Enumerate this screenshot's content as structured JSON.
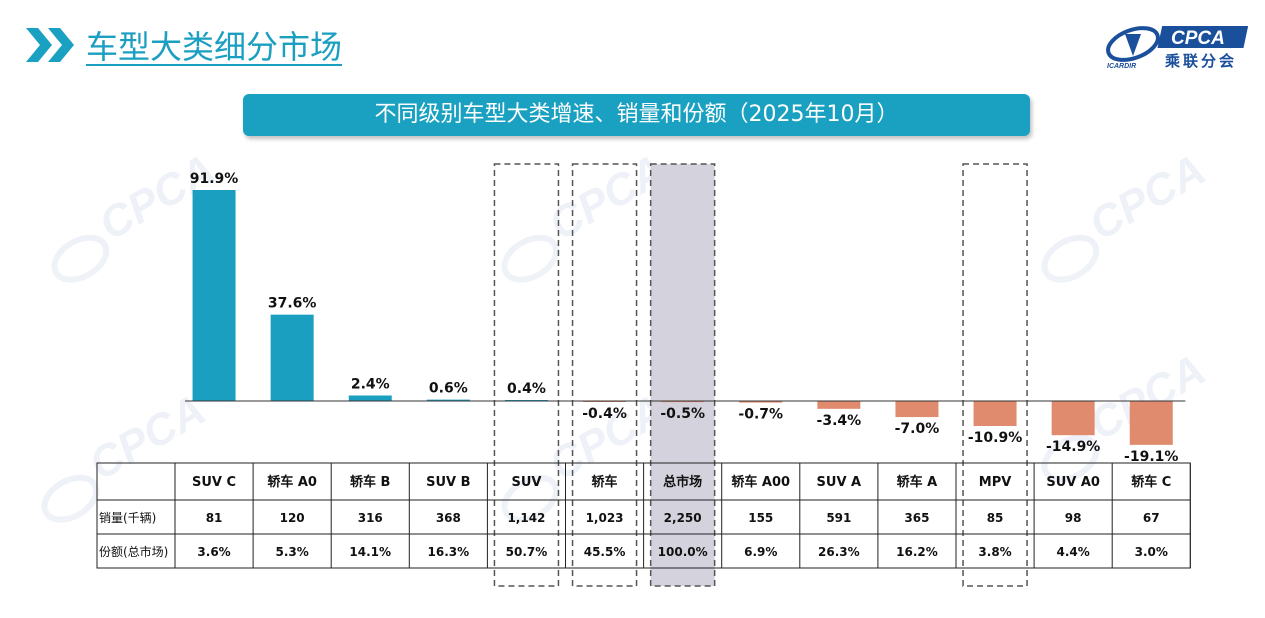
{
  "header": {
    "title": "车型大类细分市场",
    "logo_en": "CPCA",
    "logo_cn": "乘联分会",
    "logo_sub": "ICARDIR"
  },
  "banner": {
    "text": "不同级别车型大类增速、销量和份额（2025年10月）"
  },
  "colors": {
    "accent": "#1aa1c2",
    "positive_bar": "#1a9fc1",
    "negative_bar": "#e08a6e",
    "highlight_fill": "#d4d3dd",
    "title_text": "#1a9fc1",
    "logo": "#1a4f9c"
  },
  "chart_data": {
    "type": "bar",
    "title": "不同级别车型大类增速、销量和份额（2025年10月）",
    "categories": [
      "SUV C",
      "轿车 A0",
      "轿车 B",
      "SUV B",
      "SUV",
      "轿车",
      "总市场",
      "轿车 A00",
      "SUV A",
      "轿车 A",
      "MPV",
      "SUV A0",
      "轿车 C"
    ],
    "values": [
      91.9,
      37.6,
      2.4,
      0.6,
      0.4,
      -0.4,
      -0.5,
      -0.7,
      -3.4,
      -7.0,
      -10.9,
      -14.9,
      -19.1
    ],
    "labels": [
      "91.9%",
      "37.6%",
      "2.4%",
      "0.6%",
      "0.4%",
      "-0.4%",
      "-0.5%",
      "-0.7%",
      "-3.4%",
      "-7.0%",
      "-10.9%",
      "-14.9%",
      "-19.1%"
    ],
    "unit": "%",
    "ylim": [
      -19.1,
      91.9
    ],
    "grid": false,
    "dashed_highlight": [
      "SUV",
      "轿车",
      "总市场",
      "MPV"
    ],
    "shaded_highlight": [
      "总市场"
    ],
    "table": {
      "rows": [
        {
          "label": "销量(千辆)",
          "values": [
            "81",
            "120",
            "316",
            "368",
            "1,142",
            "1,023",
            "2,250",
            "155",
            "591",
            "365",
            "85",
            "98",
            "67"
          ]
        },
        {
          "label": "份额(总市场)",
          "values": [
            "3.6%",
            "5.3%",
            "14.1%",
            "16.3%",
            "50.7%",
            "45.5%",
            "100.0%",
            "6.9%",
            "26.3%",
            "16.2%",
            "3.8%",
            "4.4%",
            "3.0%"
          ]
        }
      ]
    }
  }
}
